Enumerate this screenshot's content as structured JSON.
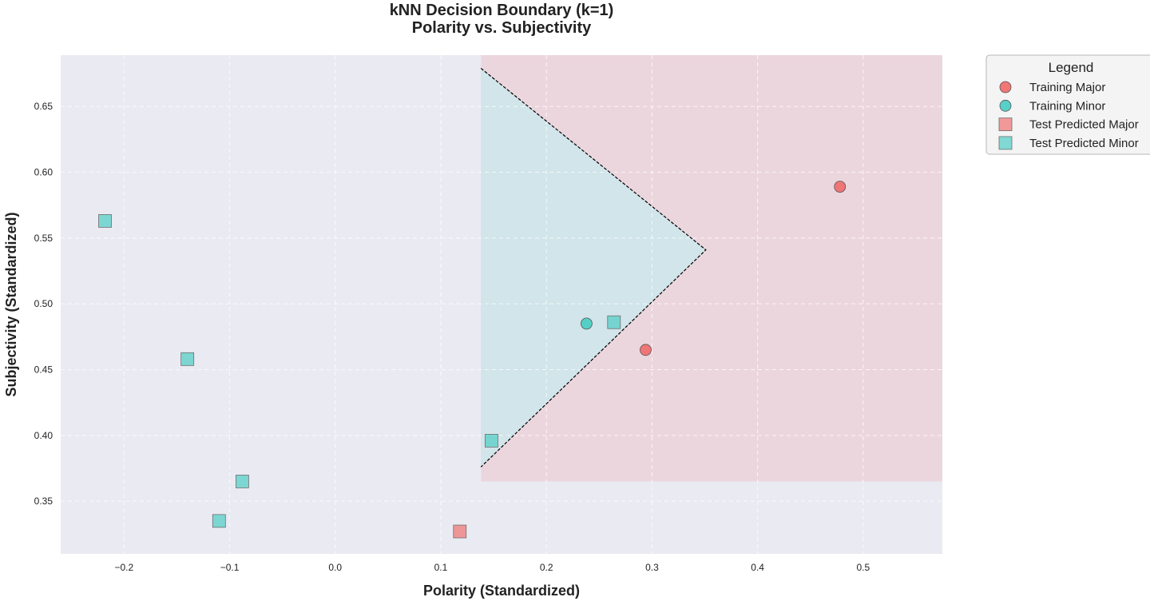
{
  "chart_data": {
    "type": "scatter",
    "title": "kNN Decision Boundary (k=1)",
    "subtitle": "Polarity vs. Subjectivity",
    "xlabel": "Polarity (Standardized)",
    "ylabel": "Subjectivity (Standardized)",
    "xlim": [
      -0.26,
      0.575
    ],
    "ylim": [
      0.31,
      0.689
    ],
    "xticks": [
      -0.2,
      -0.1,
      0.0,
      0.1,
      0.2,
      0.3,
      0.4,
      0.5
    ],
    "xtick_labels": [
      "−0.2",
      "−0.1",
      "0.0",
      "0.1",
      "0.2",
      "0.3",
      "0.4",
      "0.5"
    ],
    "yticks": [
      0.35,
      0.4,
      0.45,
      0.5,
      0.55,
      0.6,
      0.65
    ],
    "ytick_labels": [
      "0.35",
      "0.40",
      "0.45",
      "0.50",
      "0.55",
      "0.60",
      "0.65"
    ],
    "grid": true,
    "legend_title": "Legend",
    "legend_position": "outside upper right",
    "colors": {
      "major": "#f07070",
      "minor": "#4ecdc4",
      "background": "#eaeaf2",
      "major_region": "#ecd6dd",
      "minor_region": "#d1e5ea",
      "boundary": "#000000"
    },
    "regions": {
      "major": {
        "x": [
          0.138,
          0.575
        ],
        "y": [
          0.365,
          0.689
        ]
      },
      "minor_triangle": [
        [
          0.138,
          0.679
        ],
        [
          0.351,
          0.541
        ],
        [
          0.138,
          0.376
        ]
      ]
    },
    "boundary_line": [
      [
        0.138,
        0.679
      ],
      [
        0.351,
        0.541
      ],
      [
        0.138,
        0.376
      ]
    ],
    "series": [
      {
        "name": "Training Major",
        "marker": "circle",
        "color_key": "major",
        "points": [
          {
            "x": 0.478,
            "y": 0.589
          },
          {
            "x": 0.294,
            "y": 0.465
          }
        ]
      },
      {
        "name": "Training Minor",
        "marker": "circle",
        "color_key": "minor",
        "points": [
          {
            "x": 0.238,
            "y": 0.485
          }
        ]
      },
      {
        "name": "Test Predicted Major",
        "marker": "square",
        "color_key": "major",
        "points": [
          {
            "x": 0.118,
            "y": 0.327
          }
        ]
      },
      {
        "name": "Test Predicted Minor",
        "marker": "square",
        "color_key": "minor",
        "points": [
          {
            "x": -0.218,
            "y": 0.563
          },
          {
            "x": -0.14,
            "y": 0.458
          },
          {
            "x": -0.088,
            "y": 0.365
          },
          {
            "x": -0.11,
            "y": 0.335
          },
          {
            "x": 0.148,
            "y": 0.396
          },
          {
            "x": 0.264,
            "y": 0.486
          }
        ]
      }
    ]
  }
}
